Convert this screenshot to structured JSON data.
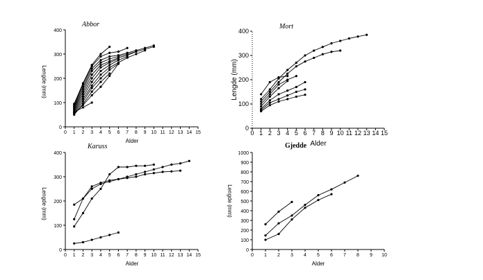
{
  "chart_data": [
    {
      "type": "line",
      "title": "Abbor",
      "xlabel": "Alder",
      "ylabel": "Lengde (mm)",
      "xlim": [
        0,
        15
      ],
      "ylim": [
        0,
        400
      ],
      "xticks": [
        "0",
        "1",
        "2",
        "3",
        "4",
        "5",
        "6",
        "7",
        "8",
        "9",
        "10",
        "11",
        "12",
        "13",
        "14",
        "15"
      ],
      "yticks": [
        "0",
        "100",
        "200",
        "300",
        "400"
      ],
      "series": [
        {
          "x": [
            1,
            2,
            3,
            4,
            5
          ],
          "y": [
            95,
            180,
            255,
            300,
            330
          ]
        },
        {
          "x": [
            1,
            2,
            3,
            4,
            5,
            6,
            7
          ],
          "y": [
            90,
            175,
            250,
            290,
            305,
            310,
            325
          ]
        },
        {
          "x": [
            1,
            2,
            3,
            4,
            5,
            6,
            7,
            8,
            9,
            10
          ],
          "y": [
            85,
            165,
            240,
            275,
            290,
            295,
            305,
            315,
            325,
            335
          ]
        },
        {
          "x": [
            1,
            2,
            3,
            4,
            5,
            6,
            7,
            8,
            9,
            10
          ],
          "y": [
            80,
            155,
            230,
            265,
            280,
            290,
            300,
            310,
            320,
            330
          ]
        },
        {
          "x": [
            1,
            2,
            3,
            4,
            5,
            6,
            7,
            8
          ],
          "y": [
            75,
            145,
            215,
            255,
            270,
            285,
            295,
            310
          ]
        },
        {
          "x": [
            1,
            2,
            3,
            4,
            5,
            6
          ],
          "y": [
            70,
            135,
            200,
            245,
            265,
            280
          ]
        },
        {
          "x": [
            1,
            2,
            3,
            4,
            5,
            6,
            7
          ],
          "y": [
            65,
            125,
            185,
            230,
            255,
            275,
            290
          ]
        },
        {
          "x": [
            1,
            2,
            3,
            4,
            5,
            6,
            7,
            8,
            9
          ],
          "y": [
            60,
            115,
            170,
            215,
            245,
            265,
            285,
            300,
            315
          ]
        },
        {
          "x": [
            1,
            2,
            3,
            4,
            5,
            6
          ],
          "y": [
            55,
            105,
            160,
            200,
            235,
            260
          ]
        },
        {
          "x": [
            1,
            2,
            3,
            4,
            5
          ],
          "y": [
            50,
            95,
            145,
            185,
            220
          ]
        },
        {
          "x": [
            1,
            2,
            3,
            4,
            5,
            6
          ],
          "y": [
            55,
            90,
            130,
            165,
            210,
            260
          ]
        },
        {
          "x": [
            1,
            2,
            3
          ],
          "y": [
            60,
            80,
            100
          ]
        }
      ]
    },
    {
      "type": "line",
      "title": "Mort",
      "xlabel": "Alder",
      "ylabel": "Lengde (mm)",
      "xlim": [
        0,
        15
      ],
      "ylim": [
        0,
        400
      ],
      "xticks": [
        "0",
        "1",
        "2",
        "3",
        "4",
        "5",
        "6",
        "7",
        "8",
        "9",
        "10",
        "11",
        "12",
        "13",
        "14",
        "15"
      ],
      "yticks": [
        "0",
        "100",
        "200",
        "300",
        "400"
      ],
      "series": [
        {
          "x": [
            1,
            2,
            3,
            4,
            5,
            6,
            7,
            8,
            9,
            10,
            11,
            12,
            13
          ],
          "y": [
            120,
            160,
            205,
            240,
            270,
            300,
            320,
            335,
            350,
            360,
            370,
            378,
            385
          ]
        },
        {
          "x": [
            1,
            2,
            3,
            4,
            5,
            6,
            7,
            8,
            9,
            10
          ],
          "y": [
            110,
            150,
            190,
            225,
            255,
            275,
            290,
            305,
            315,
            320
          ]
        },
        {
          "x": [
            1,
            2,
            3,
            4
          ],
          "y": [
            140,
            190,
            210,
            215
          ]
        },
        {
          "x": [
            1,
            2,
            3,
            4,
            5
          ],
          "y": [
            100,
            140,
            180,
            200,
            215
          ]
        },
        {
          "x": [
            1,
            2,
            3,
            4
          ],
          "y": [
            90,
            130,
            165,
            195
          ]
        },
        {
          "x": [
            1,
            2,
            3,
            4,
            5,
            6
          ],
          "y": [
            80,
            115,
            140,
            155,
            170,
            190
          ]
        },
        {
          "x": [
            1,
            2,
            3,
            4,
            5,
            6
          ],
          "y": [
            75,
            105,
            120,
            135,
            150,
            160
          ]
        },
        {
          "x": [
            1,
            2,
            3,
            4,
            5,
            6
          ],
          "y": [
            70,
            95,
            110,
            120,
            130,
            138
          ]
        }
      ]
    },
    {
      "type": "line",
      "title": "Karuss",
      "xlabel": "Alder",
      "ylabel": "Lengde (mm)",
      "xlim": [
        0,
        15
      ],
      "ylim": [
        0,
        400
      ],
      "xticks": [
        "0",
        "1",
        "2",
        "3",
        "4",
        "5",
        "6",
        "7",
        "8",
        "9",
        "10",
        "11",
        "12",
        "13",
        "14",
        "15"
      ],
      "yticks": [
        "0",
        "100",
        "200",
        "300",
        "400"
      ],
      "series": [
        {
          "x": [
            1,
            2,
            3,
            4,
            5,
            6,
            7,
            8,
            9,
            10,
            11,
            12,
            13,
            14
          ],
          "y": [
            185,
            210,
            250,
            270,
            280,
            290,
            300,
            310,
            320,
            330,
            340,
            350,
            355,
            365
          ]
        },
        {
          "x": [
            1,
            2,
            3,
            4,
            5,
            6,
            7,
            8,
            9,
            10,
            11,
            12,
            13
          ],
          "y": [
            125,
            210,
            260,
            275,
            285,
            290,
            295,
            300,
            310,
            315,
            320,
            322,
            325
          ]
        },
        {
          "x": [
            1,
            2,
            3,
            4,
            5,
            6,
            7,
            8,
            9,
            10
          ],
          "y": [
            95,
            150,
            210,
            250,
            310,
            340,
            340,
            345,
            345,
            350
          ]
        },
        {
          "x": [
            1,
            2,
            3,
            4,
            5,
            6
          ],
          "y": [
            25,
            30,
            40,
            50,
            60,
            70
          ]
        }
      ]
    },
    {
      "type": "line",
      "title": "Gjedde",
      "xlabel": "Alder",
      "ylabel": "Lengde (mm)",
      "xlim": [
        0,
        10
      ],
      "ylim": [
        0,
        1000
      ],
      "xticks": [
        "0",
        "1",
        "2",
        "3",
        "4",
        "5",
        "6",
        "7",
        "8",
        "9",
        "10"
      ],
      "yticks": [
        "0",
        "100",
        "200",
        "300",
        "400",
        "500",
        "600",
        "700",
        "800",
        "900",
        "1000"
      ],
      "series": [
        {
          "x": [
            1,
            2,
            3
          ],
          "y": [
            260,
            390,
            490
          ]
        },
        {
          "x": [
            1,
            2,
            3,
            4,
            5,
            6,
            7,
            8
          ],
          "y": [
            145,
            270,
            350,
            460,
            560,
            620,
            690,
            760
          ]
        },
        {
          "x": [
            1,
            2,
            3,
            4,
            5,
            6
          ],
          "y": [
            100,
            160,
            310,
            430,
            510,
            570
          ]
        }
      ]
    }
  ]
}
